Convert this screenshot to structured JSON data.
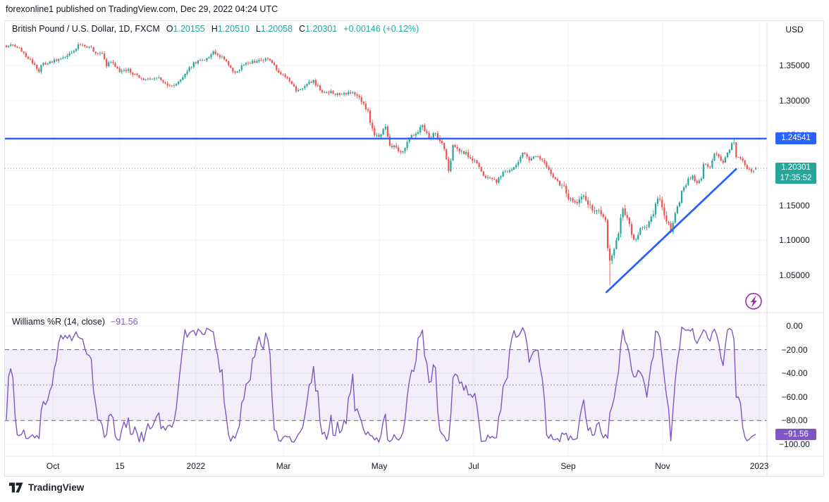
{
  "ui": {
    "publish_line": "forexonline1 published on TradingView.com, Dec 29, 2022 04:24 UTC",
    "title": "British Pound / U.S. Dollar, 1D, FXCM",
    "ohlc": {
      "o_prefix": "O",
      "o": "1.20155",
      "h_prefix": "H",
      "h": "1.20510",
      "l_prefix": "L",
      "l": "1.20058",
      "c_prefix": "C",
      "c": "1.20301",
      "change": "+0.00146 (+0.12%)"
    },
    "currency": "USD",
    "price_ticks": [
      {
        "label": "1.35000",
        "p": 1.35
      },
      {
        "label": "1.30000",
        "p": 1.3
      },
      {
        "label": "1.25000",
        "p": 1.25
      },
      {
        "label": "1.20000",
        "p": 1.2
      },
      {
        "label": "1.15000",
        "p": 1.15
      },
      {
        "label": "1.10000",
        "p": 1.1
      },
      {
        "label": "1.05000",
        "p": 1.05
      }
    ],
    "resistance_tag": "1.24541",
    "last_tag": "1.20301",
    "countdown": "17:35:52",
    "wr_title": "Williams %R (14, close)",
    "wr_value": "−91.56",
    "wr_tag": "−91.56",
    "wr_ticks": [
      {
        "label": "0.00",
        "v": 0
      },
      {
        "label": "−20.00",
        "v": -20
      },
      {
        "label": "−40.00",
        "v": -40
      },
      {
        "label": "−60.00",
        "v": -60
      },
      {
        "label": "−80.00",
        "v": -80
      },
      {
        "label": "−100.00",
        "v": -100
      }
    ],
    "time_ticks": [
      {
        "label": "Oct",
        "d": 21.4
      },
      {
        "label": "15",
        "d": 52.1
      },
      {
        "label": "2022",
        "d": 87.0
      },
      {
        "label": "Mar",
        "d": 127.2
      },
      {
        "label": "May",
        "d": 171.2
      },
      {
        "label": "Jul",
        "d": 214.5
      },
      {
        "label": "Sep",
        "d": 257.9
      },
      {
        "label": "Nov",
        "d": 301.2
      },
      {
        "label": "2023",
        "d": 345.6
      }
    ],
    "footer": "TradingView"
  },
  "colors": {
    "up": "#26a69a",
    "down": "#ef5350",
    "line_blue": "#2962ff",
    "wr_purple": "#7e57c2",
    "flash_purple": "#9c27b0",
    "grid": "#f0f3fa",
    "border": "#e0e3eb",
    "band_fill": "rgba(126,87,194,0.10)",
    "band_dash": "#6a6d78",
    "mid_dot": "#787b86",
    "text": "#131722"
  },
  "chart_data": [
    {
      "type": "candlestick",
      "title": "British Pound / U.S. Dollar",
      "interval": "1D",
      "exchange": "FXCM",
      "last_ohlc": {
        "open": 1.20155,
        "high": 1.2051,
        "low": 1.20058,
        "close": 1.20301,
        "change": 0.00146,
        "change_pct": 0.12
      },
      "ylim": [
        0.996,
        1.414
      ],
      "y_ticks": [
        1.35,
        1.3,
        1.25,
        1.2,
        1.15,
        1.1,
        1.05
      ],
      "x_tick_labels": [
        "Oct",
        "15",
        "2022",
        "Mar",
        "May",
        "Jul",
        "Sep",
        "Nov",
        "2023"
      ],
      "horizontal_line": 1.24541,
      "last_price_line": 1.20301,
      "trendline": {
        "from_day": 275.5,
        "from_price": 1.0255,
        "to_day": 335.0,
        "to_price": 1.2019
      },
      "marker": {
        "day": 343,
        "value": 1.0125
      },
      "n_days": 345,
      "anchors": [
        [
          0,
          1.377
        ],
        [
          2,
          1.3815
        ],
        [
          4,
          1.379
        ],
        [
          6,
          1.373
        ],
        [
          8,
          1.3685
        ],
        [
          10,
          1.361
        ],
        [
          12,
          1.3545
        ],
        [
          14,
          1.3475
        ],
        [
          15,
          1.343
        ],
        [
          17,
          1.354
        ],
        [
          19,
          1.3525
        ],
        [
          21,
          1.356
        ],
        [
          23,
          1.3585
        ],
        [
          26,
          1.361
        ],
        [
          28,
          1.3655
        ],
        [
          31,
          1.3735
        ],
        [
          34,
          1.3805
        ],
        [
          36,
          1.3775
        ],
        [
          38,
          1.3765
        ],
        [
          40,
          1.372
        ],
        [
          42,
          1.3655
        ],
        [
          44,
          1.3675
        ],
        [
          46,
          1.3495
        ],
        [
          48,
          1.356
        ],
        [
          50,
          1.3495
        ],
        [
          52,
          1.343
        ],
        [
          54,
          1.3435
        ],
        [
          56,
          1.3455
        ],
        [
          58,
          1.3375
        ],
        [
          61,
          1.334
        ],
        [
          63,
          1.3295
        ],
        [
          65,
          1.3315
        ],
        [
          67,
          1.3325
        ],
        [
          69,
          1.334
        ],
        [
          71,
          1.3285
        ],
        [
          73,
          1.3245
        ],
        [
          75,
          1.322
        ],
        [
          77,
          1.3205
        ],
        [
          79,
          1.327
        ],
        [
          81,
          1.333
        ],
        [
          83,
          1.342
        ],
        [
          86,
          1.353
        ],
        [
          89,
          1.358
        ],
        [
          91,
          1.3595
        ],
        [
          93,
          1.363
        ],
        [
          95,
          1.3705
        ],
        [
          97,
          1.3655
        ],
        [
          99,
          1.362
        ],
        [
          100,
          1.359
        ],
        [
          102,
          1.3495
        ],
        [
          105,
          1.339
        ],
        [
          107,
          1.3445
        ],
        [
          108,
          1.3525
        ],
        [
          110,
          1.3535
        ],
        [
          112,
          1.3555
        ],
        [
          115,
          1.357
        ],
        [
          118,
          1.359
        ],
        [
          120,
          1.3605
        ],
        [
          122,
          1.355
        ],
        [
          125,
          1.339
        ],
        [
          128,
          1.3335
        ],
        [
          130,
          1.326
        ],
        [
          133,
          1.3145
        ],
        [
          135,
          1.3165
        ],
        [
          137,
          1.32
        ],
        [
          139,
          1.3255
        ],
        [
          141,
          1.328
        ],
        [
          143,
          1.3195
        ],
        [
          145,
          1.3135
        ],
        [
          147,
          1.312
        ],
        [
          150,
          1.3115
        ],
        [
          152,
          1.3085
        ],
        [
          155,
          1.3095
        ],
        [
          157,
          1.311
        ],
        [
          159,
          1.3125
        ],
        [
          161,
          1.307
        ],
        [
          163,
          1.3
        ],
        [
          166,
          1.284
        ],
        [
          168,
          1.2575
        ],
        [
          170,
          1.248
        ],
        [
          172,
          1.251
        ],
        [
          174,
          1.263
        ],
        [
          176,
          1.234
        ],
        [
          179,
          1.232
        ],
        [
          181,
          1.226
        ],
        [
          183,
          1.233
        ],
        [
          185,
          1.247
        ],
        [
          188,
          1.253
        ],
        [
          191,
          1.263
        ],
        [
          194,
          1.248
        ],
        [
          197,
          1.253
        ],
        [
          199,
          1.2445
        ],
        [
          201,
          1.231
        ],
        [
          203,
          1.199
        ],
        [
          205,
          1.235
        ],
        [
          208,
          1.226
        ],
        [
          211,
          1.227
        ],
        [
          213,
          1.2165
        ],
        [
          216,
          1.21
        ],
        [
          219,
          1.192
        ],
        [
          222,
          1.189
        ],
        [
          225,
          1.183
        ],
        [
          228,
          1.197
        ],
        [
          230,
          1.2
        ],
        [
          233,
          1.204
        ],
        [
          235,
          1.2115
        ],
        [
          237,
          1.225
        ],
        [
          240,
          1.216
        ],
        [
          242,
          1.2205
        ],
        [
          244,
          1.222
        ],
        [
          246,
          1.2135
        ],
        [
          248,
          1.205
        ],
        [
          250,
          1.193
        ],
        [
          253,
          1.183
        ],
        [
          256,
          1.174
        ],
        [
          258,
          1.162
        ],
        [
          260,
          1.154
        ],
        [
          262,
          1.152
        ],
        [
          264,
          1.1585
        ],
        [
          266,
          1.1605
        ],
        [
          268,
          1.149
        ],
        [
          270,
          1.1435
        ],
        [
          273,
          1.138
        ],
        [
          275,
          1.129
        ],
        [
          276,
          1.086
        ],
        [
          277,
          1.069
        ],
        [
          279,
          1.089
        ],
        [
          281,
          1.112
        ],
        [
          283,
          1.147
        ],
        [
          285,
          1.132
        ],
        [
          287,
          1.11
        ],
        [
          288,
          1.098
        ],
        [
          290,
          1.11
        ],
        [
          291,
          1.117
        ],
        [
          293,
          1.1195
        ],
        [
          294,
          1.122
        ],
        [
          296,
          1.13
        ],
        [
          298,
          1.1485
        ],
        [
          299,
          1.162
        ],
        [
          301,
          1.147
        ],
        [
          303,
          1.125
        ],
        [
          305,
          1.116
        ],
        [
          307,
          1.138
        ],
        [
          309,
          1.1545
        ],
        [
          310,
          1.171
        ],
        [
          312,
          1.179
        ],
        [
          313,
          1.187
        ],
        [
          315,
          1.192
        ],
        [
          317,
          1.182
        ],
        [
          319,
          1.1895
        ],
        [
          320,
          1.211
        ],
        [
          322,
          1.205
        ],
        [
          323,
          1.206
        ],
        [
          325,
          1.225
        ],
        [
          327,
          1.219
        ],
        [
          329,
          1.213
        ],
        [
          331,
          1.226
        ],
        [
          333,
          1.2375
        ],
        [
          334,
          1.242
        ],
        [
          335,
          1.218
        ],
        [
          337,
          1.219
        ],
        [
          338,
          1.214
        ],
        [
          340,
          1.204
        ],
        [
          342,
          1.199
        ],
        [
          344,
          1.20301
        ]
      ],
      "overrides": {
        "276": {
          "low": 1.084
        },
        "277": {
          "low": 1.035
        },
        "334": {
          "high": 1.2446
        },
        "344": {
          "open": 1.20155,
          "high": 1.2051,
          "low": 1.20058,
          "close": 1.20301
        }
      }
    },
    {
      "type": "line",
      "name": "Williams %R",
      "params": [
        14,
        "close"
      ],
      "last_value": -91.56,
      "ylim": [
        -100,
        0
      ],
      "y_ticks": [
        0,
        -20,
        -40,
        -60,
        -80,
        -100
      ],
      "overbought": -20,
      "oversold": -80,
      "middle": -50
    }
  ]
}
